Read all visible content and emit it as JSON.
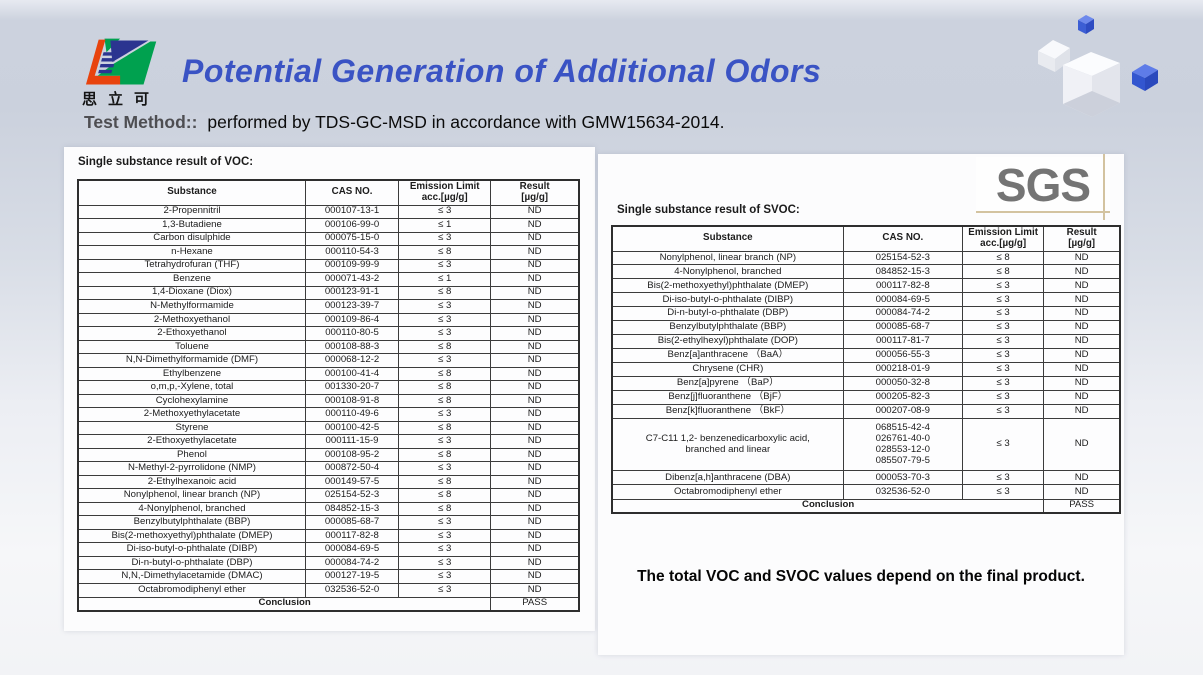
{
  "header": {
    "logo_text": "思立可",
    "title": "Potential Generation of Additional Odors",
    "test_method_label": "Test Method::",
    "test_method_value": "performed by TDS-GC-MSD in accordance with GMW15634-2014."
  },
  "colors": {
    "title_blue": "#3a53c4",
    "sgs_gray": "#747474",
    "logo_orange": "#e8430d",
    "logo_green": "#00a14f",
    "logo_navy": "#2b3490",
    "cube_blue": "#3f62d9"
  },
  "sgs_logo": "SGS",
  "note": "The total VOC and SVOC values depend on the final product.",
  "voc_table": {
    "section_label": "Single substance result of VOC:",
    "headers": [
      "Substance",
      "CAS NO.",
      "Emission Limit\nacc.[µg/g]",
      "Result\n[µg/g]"
    ],
    "rows": [
      [
        "2-Propennitril",
        "000107-13-1",
        "≤ 3",
        "ND"
      ],
      [
        "1,3-Butadiene",
        "000106-99-0",
        "≤ 1",
        "ND"
      ],
      [
        "Carbon disulphide",
        "000075-15-0",
        "≤ 3",
        "ND"
      ],
      [
        "n-Hexane",
        "000110-54-3",
        "≤ 8",
        "ND"
      ],
      [
        "Tetrahydrofuran (THF)",
        "000109-99-9",
        "≤ 3",
        "ND"
      ],
      [
        "Benzene",
        "000071-43-2",
        "≤ 1",
        "ND"
      ],
      [
        "1,4-Dioxane (Diox)",
        "000123-91-1",
        "≤ 8",
        "ND"
      ],
      [
        "N-Methylformamide",
        "000123-39-7",
        "≤ 3",
        "ND"
      ],
      [
        "2-Methoxyethanol",
        "000109-86-4",
        "≤ 3",
        "ND"
      ],
      [
        "2-Ethoxyethanol",
        "000110-80-5",
        "≤ 3",
        "ND"
      ],
      [
        "Toluene",
        "000108-88-3",
        "≤ 8",
        "ND"
      ],
      [
        "N,N-Dimethylformamide (DMF)",
        "000068-12-2",
        "≤ 3",
        "ND"
      ],
      [
        "Ethylbenzene",
        "000100-41-4",
        "≤ 8",
        "ND"
      ],
      [
        "o,m,p,-Xylene, total",
        "001330-20-7",
        "≤ 8",
        "ND"
      ],
      [
        "Cyclohexylamine",
        "000108-91-8",
        "≤ 8",
        "ND"
      ],
      [
        "2-Methoxyethylacetate",
        "000110-49-6",
        "≤ 3",
        "ND"
      ],
      [
        "Styrene",
        "000100-42-5",
        "≤ 8",
        "ND"
      ],
      [
        "2-Ethoxyethylacetate",
        "000111-15-9",
        "≤ 3",
        "ND"
      ],
      [
        "Phenol",
        "000108-95-2",
        "≤ 8",
        "ND"
      ],
      [
        "N-Methyl-2-pyrrolidone (NMP)",
        "000872-50-4",
        "≤ 3",
        "ND"
      ],
      [
        "2-Ethylhexanoic acid",
        "000149-57-5",
        "≤ 8",
        "ND"
      ],
      [
        "Nonylphenol, linear branch (NP)",
        "025154-52-3",
        "≤ 8",
        "ND"
      ],
      [
        "4-Nonylphenol, branched",
        "084852-15-3",
        "≤ 8",
        "ND"
      ],
      [
        "Benzylbutylphthalate (BBP)",
        "000085-68-7",
        "≤ 3",
        "ND"
      ],
      [
        "Bis(2-methoxyethyl)phthalate (DMEP)",
        "000117-82-8",
        "≤ 3",
        "ND"
      ],
      [
        "Di-iso-butyl-o-phthalate (DIBP)",
        "000084-69-5",
        "≤ 3",
        "ND"
      ],
      [
        "Di-n-butyl-o-phthalate (DBP)",
        "000084-74-2",
        "≤ 3",
        "ND"
      ],
      [
        "N,N,-Dimethylacetamide (DMAC)",
        "000127-19-5",
        "≤ 3",
        "ND"
      ],
      [
        "Octabromodiphenyl ether",
        "032536-52-0",
        "≤ 3",
        "ND"
      ]
    ],
    "conclusion_label": "Conclusion",
    "conclusion_value": "PASS"
  },
  "svoc_table": {
    "section_label": "Single substance result of SVOC:",
    "headers": [
      "Substance",
      "CAS NO.",
      "Emission Limit\nacc.[µg/g]",
      "Result\n[µg/g]"
    ],
    "rows": [
      [
        "Nonylphenol, linear branch (NP)",
        "025154-52-3",
        "≤ 8",
        "ND"
      ],
      [
        "4-Nonylphenol, branched",
        "084852-15-3",
        "≤ 8",
        "ND"
      ],
      [
        "Bis(2-methoxyethyl)phthalate (DMEP)",
        "000117-82-8",
        "≤ 3",
        "ND"
      ],
      [
        "Di-iso-butyl-o-phthalate (DIBP)",
        "000084-69-5",
        "≤ 3",
        "ND"
      ],
      [
        "Di-n-butyl-o-phthalate (DBP)",
        "000084-74-2",
        "≤ 3",
        "ND"
      ],
      [
        "Benzylbutylphthalate (BBP)",
        "000085-68-7",
        "≤ 3",
        "ND"
      ],
      [
        "Bis(2-ethylhexyl)phthalate (DOP)",
        "000117-81-7",
        "≤ 3",
        "ND"
      ],
      [
        "Benz[a]anthracene （BaA）",
        "000056-55-3",
        "≤ 3",
        "ND"
      ],
      [
        "Chrysene (CHR)",
        "000218-01-9",
        "≤ 3",
        "ND"
      ],
      [
        "Benz[a]pyrene （BaP）",
        "000050-32-8",
        "≤ 3",
        "ND"
      ],
      [
        "Benz[j]fluoranthene （BjF）",
        "000205-82-3",
        "≤ 3",
        "ND"
      ],
      [
        "Benz[k]fluoranthene （BkF）",
        "000207-08-9",
        "≤ 3",
        "ND"
      ],
      [
        "C7-C11 1,2- benzenedicarboxylic acid,\nbranched and linear",
        [
          "068515-42-4",
          "026761-40-0",
          "028553-12-0",
          "085507-79-5"
        ],
        "≤ 3",
        "ND"
      ],
      [
        "Dibenz[a,h]anthracene (DBA)",
        "000053-70-3",
        "≤ 3",
        "ND"
      ],
      [
        "Octabromodiphenyl ether",
        "032536-52-0",
        "≤ 3",
        "ND"
      ]
    ],
    "conclusion_label": "Conclusion",
    "conclusion_value": "PASS"
  }
}
